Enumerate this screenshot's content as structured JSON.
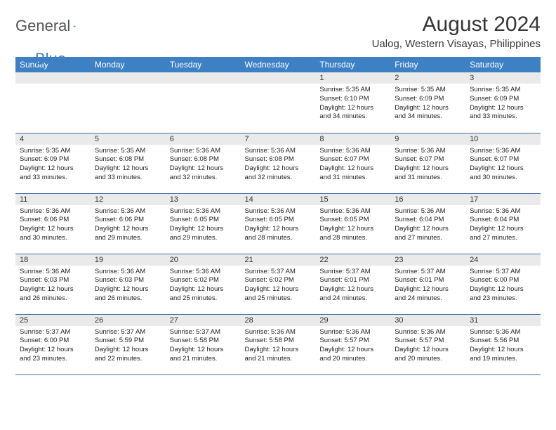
{
  "logo": {
    "part1": "General",
    "part2": "Blue"
  },
  "title": "August 2024",
  "subtitle": "Ualog, Western Visayas, Philippines",
  "colors": {
    "header_bg": "#3d80c4",
    "header_text": "#ffffff",
    "daynum_bg": "#eaeaea",
    "border": "#3d6fa5",
    "body_text": "#222222",
    "logo_gray": "#555555",
    "logo_blue": "#3d80c4"
  },
  "weekdays": [
    "Sunday",
    "Monday",
    "Tuesday",
    "Wednesday",
    "Thursday",
    "Friday",
    "Saturday"
  ],
  "weeks": [
    [
      null,
      null,
      null,
      null,
      {
        "n": "1",
        "sr": "5:35 AM",
        "ss": "6:10 PM",
        "dl": "12 hours and 34 minutes."
      },
      {
        "n": "2",
        "sr": "5:35 AM",
        "ss": "6:09 PM",
        "dl": "12 hours and 34 minutes."
      },
      {
        "n": "3",
        "sr": "5:35 AM",
        "ss": "6:09 PM",
        "dl": "12 hours and 33 minutes."
      }
    ],
    [
      {
        "n": "4",
        "sr": "5:35 AM",
        "ss": "6:09 PM",
        "dl": "12 hours and 33 minutes."
      },
      {
        "n": "5",
        "sr": "5:35 AM",
        "ss": "6:08 PM",
        "dl": "12 hours and 33 minutes."
      },
      {
        "n": "6",
        "sr": "5:36 AM",
        "ss": "6:08 PM",
        "dl": "12 hours and 32 minutes."
      },
      {
        "n": "7",
        "sr": "5:36 AM",
        "ss": "6:08 PM",
        "dl": "12 hours and 32 minutes."
      },
      {
        "n": "8",
        "sr": "5:36 AM",
        "ss": "6:07 PM",
        "dl": "12 hours and 31 minutes."
      },
      {
        "n": "9",
        "sr": "5:36 AM",
        "ss": "6:07 PM",
        "dl": "12 hours and 31 minutes."
      },
      {
        "n": "10",
        "sr": "5:36 AM",
        "ss": "6:07 PM",
        "dl": "12 hours and 30 minutes."
      }
    ],
    [
      {
        "n": "11",
        "sr": "5:36 AM",
        "ss": "6:06 PM",
        "dl": "12 hours and 30 minutes."
      },
      {
        "n": "12",
        "sr": "5:36 AM",
        "ss": "6:06 PM",
        "dl": "12 hours and 29 minutes."
      },
      {
        "n": "13",
        "sr": "5:36 AM",
        "ss": "6:05 PM",
        "dl": "12 hours and 29 minutes."
      },
      {
        "n": "14",
        "sr": "5:36 AM",
        "ss": "6:05 PM",
        "dl": "12 hours and 28 minutes."
      },
      {
        "n": "15",
        "sr": "5:36 AM",
        "ss": "6:05 PM",
        "dl": "12 hours and 28 minutes."
      },
      {
        "n": "16",
        "sr": "5:36 AM",
        "ss": "6:04 PM",
        "dl": "12 hours and 27 minutes."
      },
      {
        "n": "17",
        "sr": "5:36 AM",
        "ss": "6:04 PM",
        "dl": "12 hours and 27 minutes."
      }
    ],
    [
      {
        "n": "18",
        "sr": "5:36 AM",
        "ss": "6:03 PM",
        "dl": "12 hours and 26 minutes."
      },
      {
        "n": "19",
        "sr": "5:36 AM",
        "ss": "6:03 PM",
        "dl": "12 hours and 26 minutes."
      },
      {
        "n": "20",
        "sr": "5:36 AM",
        "ss": "6:02 PM",
        "dl": "12 hours and 25 minutes."
      },
      {
        "n": "21",
        "sr": "5:37 AM",
        "ss": "6:02 PM",
        "dl": "12 hours and 25 minutes."
      },
      {
        "n": "22",
        "sr": "5:37 AM",
        "ss": "6:01 PM",
        "dl": "12 hours and 24 minutes."
      },
      {
        "n": "23",
        "sr": "5:37 AM",
        "ss": "6:01 PM",
        "dl": "12 hours and 24 minutes."
      },
      {
        "n": "24",
        "sr": "5:37 AM",
        "ss": "6:00 PM",
        "dl": "12 hours and 23 minutes."
      }
    ],
    [
      {
        "n": "25",
        "sr": "5:37 AM",
        "ss": "6:00 PM",
        "dl": "12 hours and 23 minutes."
      },
      {
        "n": "26",
        "sr": "5:37 AM",
        "ss": "5:59 PM",
        "dl": "12 hours and 22 minutes."
      },
      {
        "n": "27",
        "sr": "5:37 AM",
        "ss": "5:58 PM",
        "dl": "12 hours and 21 minutes."
      },
      {
        "n": "28",
        "sr": "5:36 AM",
        "ss": "5:58 PM",
        "dl": "12 hours and 21 minutes."
      },
      {
        "n": "29",
        "sr": "5:36 AM",
        "ss": "5:57 PM",
        "dl": "12 hours and 20 minutes."
      },
      {
        "n": "30",
        "sr": "5:36 AM",
        "ss": "5:57 PM",
        "dl": "12 hours and 20 minutes."
      },
      {
        "n": "31",
        "sr": "5:36 AM",
        "ss": "5:56 PM",
        "dl": "12 hours and 19 minutes."
      }
    ]
  ],
  "labels": {
    "sunrise": "Sunrise:",
    "sunset": "Sunset:",
    "daylight": "Daylight:"
  }
}
